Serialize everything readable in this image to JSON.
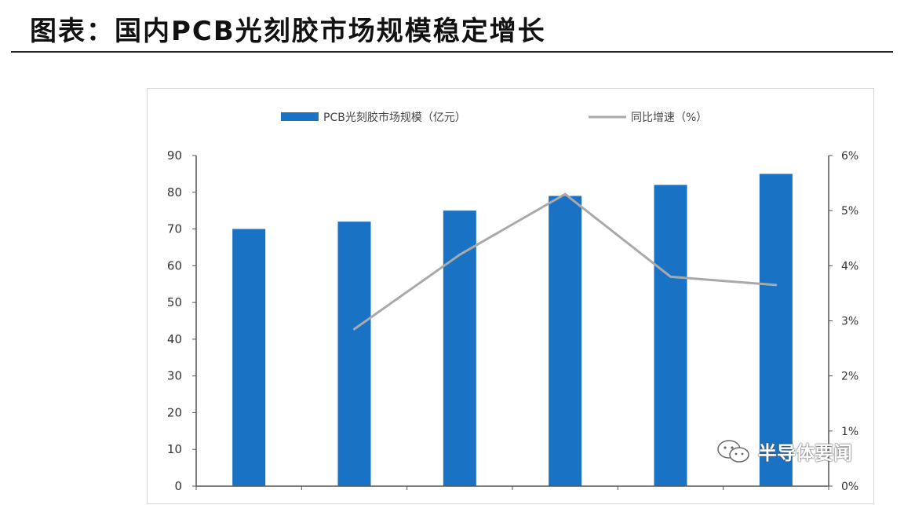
{
  "header": {
    "title": "图表：国内PCB光刻胶市场规模稳定增长"
  },
  "watermark": {
    "text": "半导体要闻",
    "icon": "wechat-icon"
  },
  "chart_data": {
    "type": "bar",
    "categories": [
      "",
      "",
      "",
      "",
      "",
      ""
    ],
    "series": [
      {
        "name": "PCB光刻胶市场规模（亿元）",
        "type": "bar",
        "axis": "left",
        "values": [
          70,
          72,
          75,
          79,
          82,
          85
        ]
      },
      {
        "name": "同比增速（%）",
        "type": "line",
        "axis": "right",
        "values": [
          null,
          2.85,
          4.2,
          5.3,
          3.8,
          3.65
        ]
      }
    ],
    "y_left": {
      "min": 0,
      "max": 90,
      "ticks": [
        "0",
        "10",
        "20",
        "30",
        "40",
        "50",
        "60",
        "70",
        "80",
        "90"
      ]
    },
    "y_right": {
      "min": 0,
      "max": 6,
      "ticks": [
        "0%",
        "1%",
        "2%",
        "3%",
        "4%",
        "5%",
        "6%"
      ]
    },
    "legend_position": "top-center",
    "grid": {
      "horizontal": false,
      "vertical": false
    },
    "colors": {
      "bar": "#1a72c4",
      "line": "#a9a9a9",
      "axis": "#555555"
    }
  }
}
